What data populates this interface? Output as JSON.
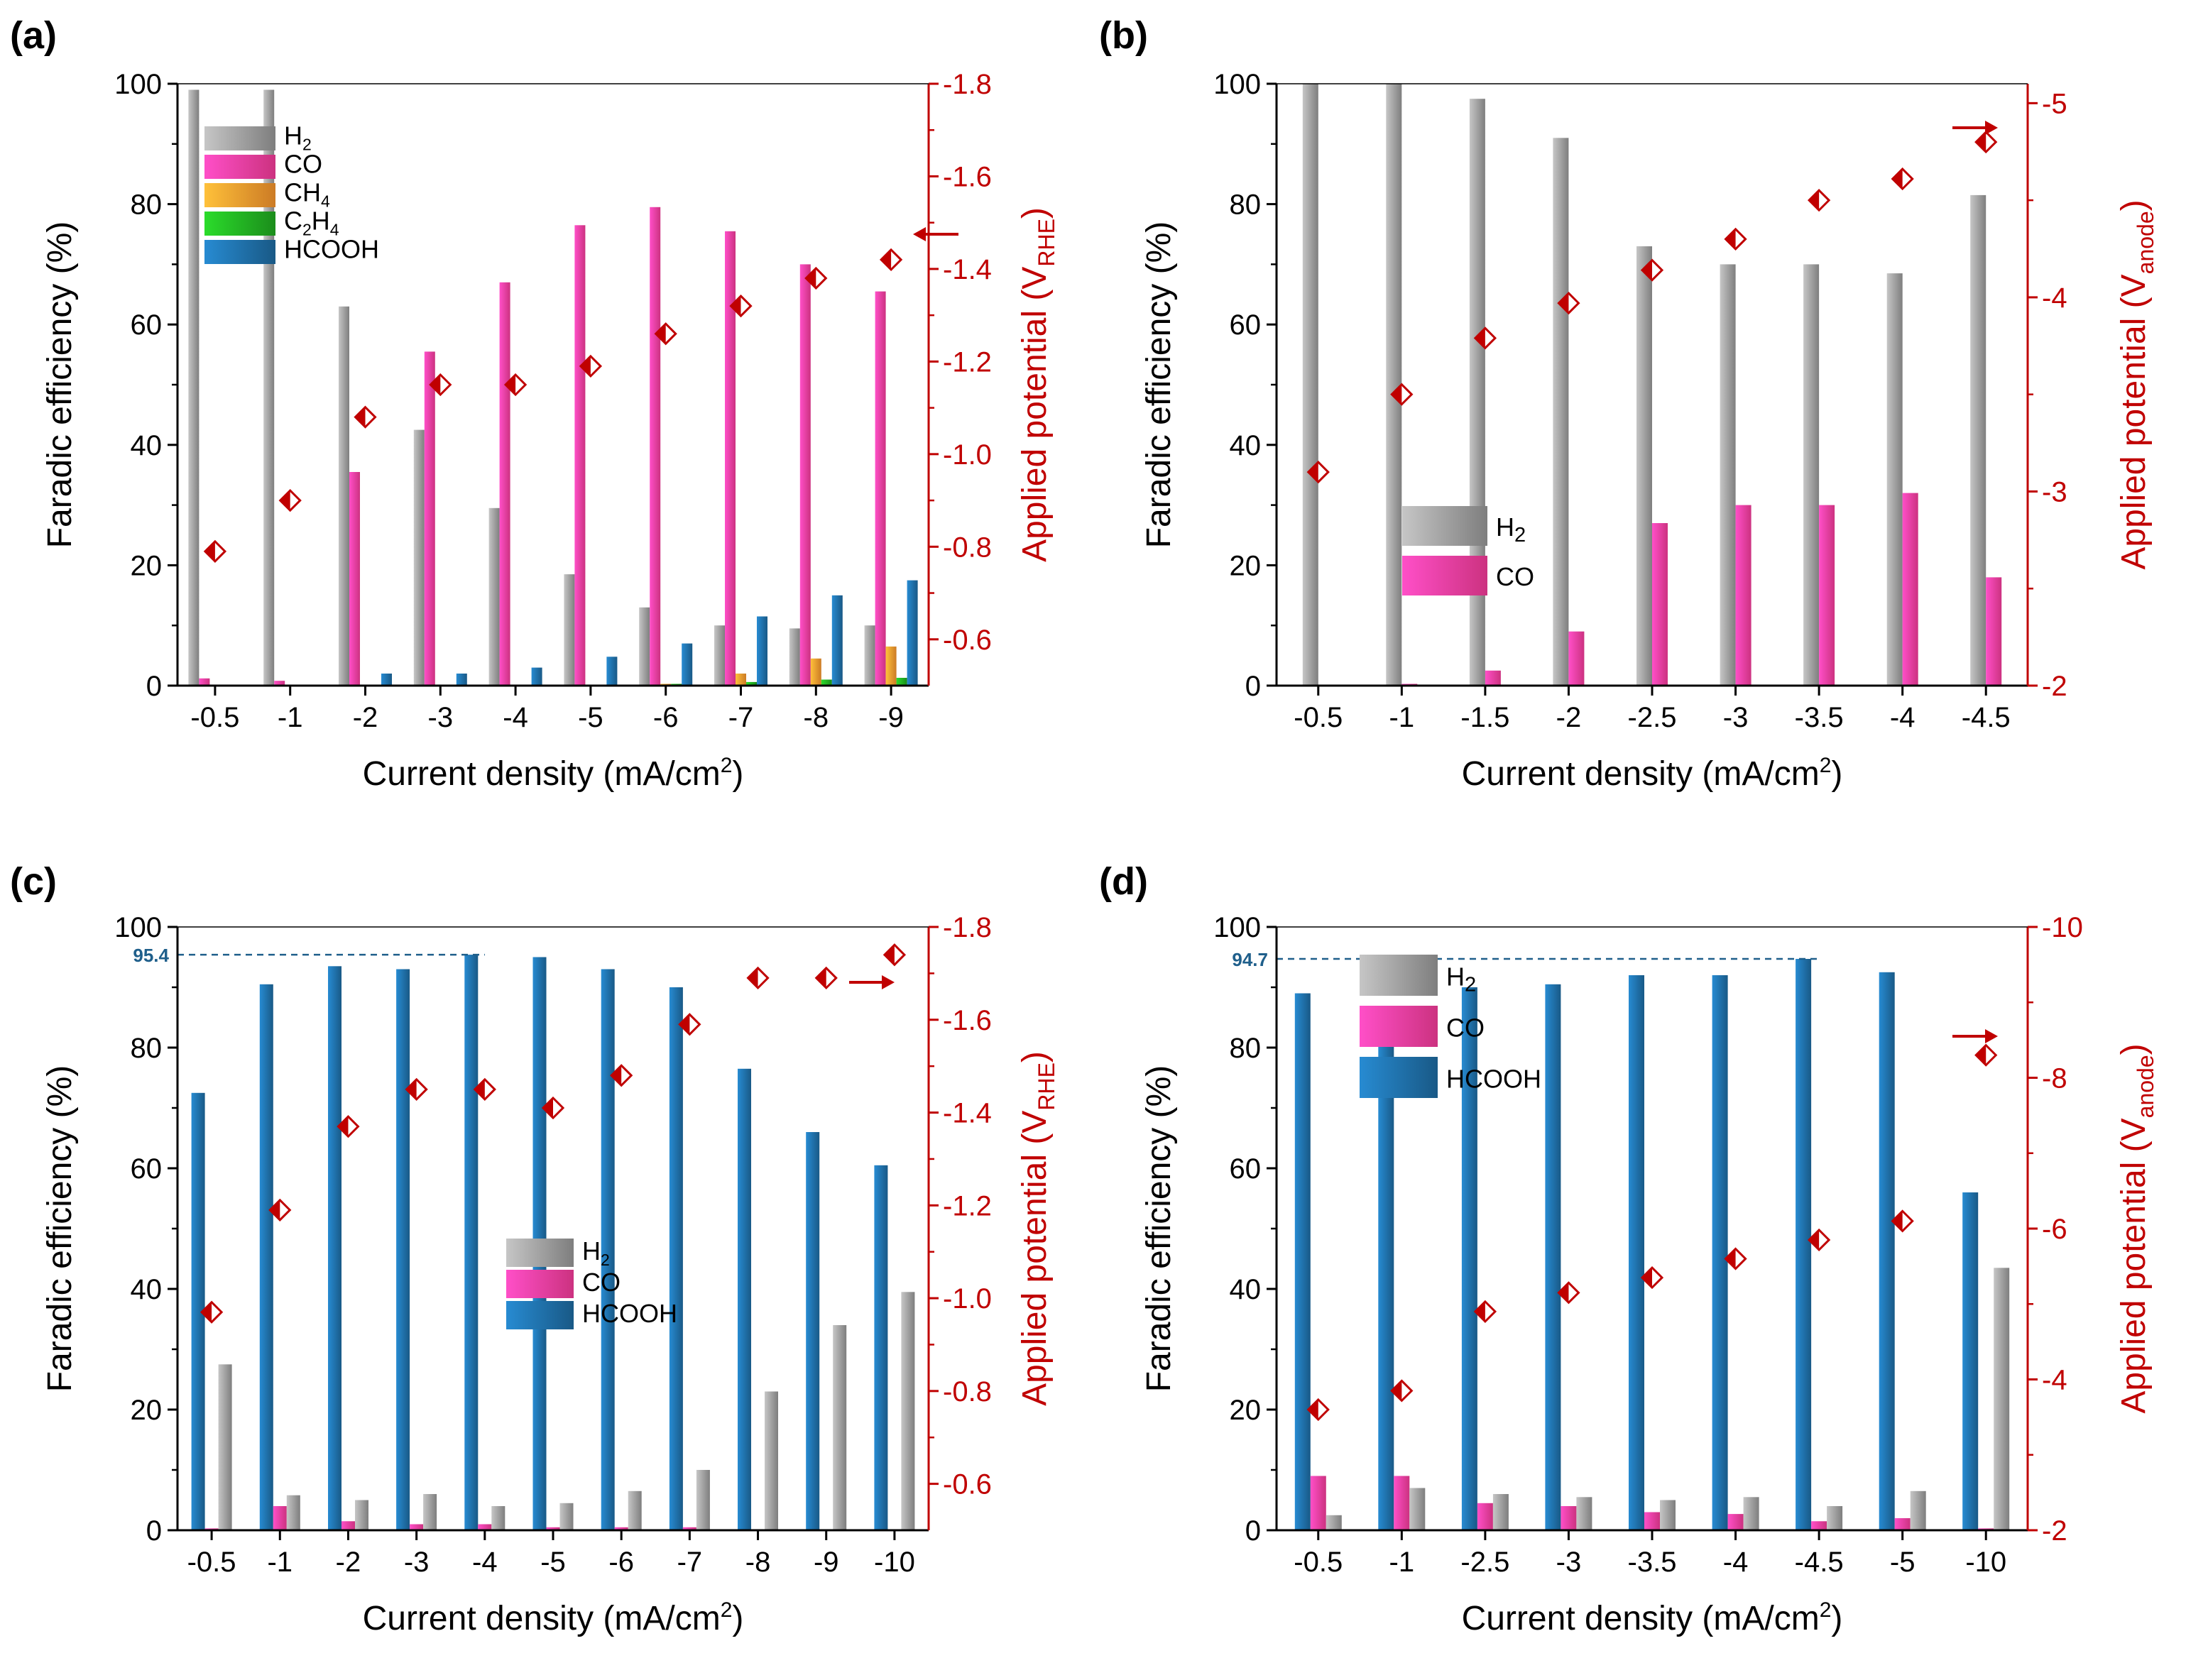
{
  "colors": {
    "H2": "#9e9e9e",
    "CO": "#ff3fa0",
    "CH4": "#ff9a2e",
    "C2H4": "#22b022",
    "HCOOH": "#1f6fa8",
    "potential": "#c00000",
    "axis": "#000000",
    "annotation": "#1f5f8b"
  },
  "chart_data": [
    {
      "id": "a",
      "type": "bar",
      "panel_label": "(a)",
      "xlabel": "Current density (mA/cm",
      "xlabel_sup": "2",
      "xlabel_end": ")",
      "ylabel": "Faradic efficiency (%)",
      "y2label": "Applied potential (V",
      "y2label_sub": "RHE",
      "y2label_end": ")",
      "categories": [
        "-0.5",
        "-1",
        "-2",
        "-3",
        "-4",
        "-5",
        "-6",
        "-7",
        "-8",
        "-9"
      ],
      "ylim": [
        0,
        100
      ],
      "yticks": [
        "0",
        "20",
        "40",
        "60",
        "80",
        "100"
      ],
      "y2lim": [
        -0.5,
        -1.8
      ],
      "y2ticks": [
        {
          "v": -0.6,
          "t": "-0.6"
        },
        {
          "v": -0.8,
          "t": "-0.8"
        },
        {
          "v": -1.0,
          "t": "-1.0"
        },
        {
          "v": -1.2,
          "t": "-1.2"
        },
        {
          "v": -1.4,
          "t": "-1.4"
        },
        {
          "v": -1.6,
          "t": "-1.6"
        },
        {
          "v": -1.8,
          "t": "-1.8"
        }
      ],
      "legend": [
        {
          "key": "H2",
          "label": "H",
          "sub": "2"
        },
        {
          "key": "CO",
          "label": "CO",
          "sub": ""
        },
        {
          "key": "CH4",
          "label": "CH",
          "sub": "4"
        },
        {
          "key": "C2H4",
          "label": "C",
          "sub": "2",
          "label2": "H",
          "sub2": "4"
        },
        {
          "key": "HCOOH",
          "label": "HCOOH",
          "sub": ""
        }
      ],
      "series": [
        {
          "name": "H2",
          "values": [
            99,
            99,
            63,
            42.5,
            29.5,
            18.5,
            13,
            10,
            9.5,
            10
          ]
        },
        {
          "name": "CO",
          "values": [
            1.2,
            0.8,
            35.5,
            55.5,
            67,
            76.5,
            79.5,
            75.5,
            70,
            65.5
          ]
        },
        {
          "name": "CH4",
          "values": [
            0,
            0,
            0,
            0,
            0,
            0,
            0.3,
            2,
            4.5,
            6.5
          ]
        },
        {
          "name": "C2H4",
          "values": [
            0,
            0,
            0,
            0,
            0,
            0,
            0.3,
            0.6,
            1,
            1.3
          ]
        },
        {
          "name": "HCOOH",
          "values": [
            0,
            0,
            2,
            2,
            3,
            4.8,
            7,
            11.5,
            15,
            17.5
          ]
        }
      ],
      "potential": [
        -0.79,
        -0.9,
        -1.08,
        -1.15,
        -1.15,
        -1.19,
        -1.26,
        -1.32,
        -1.38,
        -1.42
      ]
    },
    {
      "id": "b",
      "type": "bar",
      "panel_label": "(b)",
      "xlabel": "Current density (mA/cm",
      "xlabel_sup": "2",
      "xlabel_end": ")",
      "ylabel": "Faradic efficiency (%)",
      "y2label": "Applied potential (V",
      "y2label_sub": "anode",
      "y2label_end": ")",
      "categories": [
        "-0.5",
        "-1",
        "-1.5",
        "-2",
        "-2.5",
        "-3",
        "-3.5",
        "-4",
        "-4.5"
      ],
      "ylim": [
        0,
        100
      ],
      "yticks": [
        "0",
        "20",
        "40",
        "60",
        "80",
        "100"
      ],
      "y2lim": [
        -2,
        -5.1
      ],
      "y2ticks": [
        {
          "v": -2,
          "t": "-2"
        },
        {
          "v": -3,
          "t": "-3"
        },
        {
          "v": -4,
          "t": "-4"
        },
        {
          "v": -5,
          "t": "-5"
        }
      ],
      "legend": [
        {
          "key": "H2",
          "label": "H",
          "sub": "2"
        },
        {
          "key": "CO",
          "label": "CO",
          "sub": ""
        }
      ],
      "series": [
        {
          "name": "H2",
          "values": [
            100,
            100,
            97.5,
            91,
            73,
            70,
            70,
            68.5,
            81.5
          ]
        },
        {
          "name": "CO",
          "values": [
            0,
            0.3,
            2.5,
            9,
            27,
            30,
            30,
            32,
            18
          ]
        }
      ],
      "potential": [
        -3.1,
        -3.5,
        -3.79,
        -3.97,
        -4.14,
        -4.3,
        -4.5,
        -4.61,
        -4.8
      ]
    },
    {
      "id": "c",
      "type": "bar",
      "panel_label": "(c)",
      "xlabel": "Current density (mA/cm",
      "xlabel_sup": "2",
      "xlabel_end": ")",
      "ylabel": "Faradic efficiency (%)",
      "y2label": "Applied potential (V",
      "y2label_sub": "RHE",
      "y2label_end": ")",
      "categories": [
        "-0.5",
        "-1",
        "-2",
        "-3",
        "-4",
        "-5",
        "-6",
        "-7",
        "-8",
        "-9",
        "-10"
      ],
      "ylim": [
        0,
        100
      ],
      "yticks": [
        "0",
        "20",
        "40",
        "60",
        "80",
        "100"
      ],
      "y2lim": [
        -0.5,
        -1.8
      ],
      "y2ticks": [
        {
          "v": -0.6,
          "t": "-0.6"
        },
        {
          "v": -0.8,
          "t": "-0.8"
        },
        {
          "v": -1.0,
          "t": "-1.0"
        },
        {
          "v": -1.2,
          "t": "-1.2"
        },
        {
          "v": -1.4,
          "t": "-1.4"
        },
        {
          "v": -1.6,
          "t": "-1.6"
        },
        {
          "v": -1.8,
          "t": "-1.8"
        }
      ],
      "annotation": {
        "value": 95.4,
        "label": "95.4",
        "to_index": 4
      },
      "legend": [
        {
          "key": "H2",
          "label": "H",
          "sub": "2"
        },
        {
          "key": "CO",
          "label": "CO",
          "sub": ""
        },
        {
          "key": "HCOOH",
          "label": "HCOOH",
          "sub": ""
        }
      ],
      "series": [
        {
          "name": "HCOOH",
          "values": [
            72.5,
            90.5,
            93.5,
            93,
            95.4,
            95,
            93,
            90,
            76.5,
            66,
            60.5
          ]
        },
        {
          "name": "CO",
          "values": [
            0.3,
            4,
            1.5,
            1,
            1,
            0.5,
            0.5,
            0.5,
            0,
            0,
            0
          ]
        },
        {
          "name": "H2",
          "values": [
            27.5,
            5.8,
            5,
            6,
            4,
            4.5,
            6.5,
            10,
            23,
            34,
            39.5
          ]
        }
      ],
      "potential": [
        -0.97,
        -1.19,
        -1.37,
        -1.45,
        -1.45,
        -1.41,
        -1.48,
        -1.59,
        -1.69,
        -1.69,
        -1.74
      ]
    },
    {
      "id": "d",
      "type": "bar",
      "panel_label": "(d)",
      "xlabel": "Current density (mA/cm",
      "xlabel_sup": "2",
      "xlabel_end": ")",
      "ylabel": "Faradic efficiency (%)",
      "y2label": "Applied potential (V",
      "y2label_sub": "anode",
      "y2label_end": ")",
      "categories": [
        "-0.5",
        "-1",
        "-2.5",
        "-3",
        "-3.5",
        "-4",
        "-4.5",
        "-5",
        "-10"
      ],
      "ylim": [
        0,
        100
      ],
      "yticks": [
        "0",
        "20",
        "40",
        "60",
        "80",
        "100"
      ],
      "y2lim": [
        -2,
        -10
      ],
      "y2ticks": [
        {
          "v": -2,
          "t": "-2"
        },
        {
          "v": -4,
          "t": "-4"
        },
        {
          "v": -6,
          "t": "-6"
        },
        {
          "v": -8,
          "t": "-8"
        },
        {
          "v": -10,
          "t": "-10"
        }
      ],
      "annotation": {
        "value": 94.7,
        "label": "94.7",
        "to_index": 6
      },
      "legend": [
        {
          "key": "H2",
          "label": "H",
          "sub": "2"
        },
        {
          "key": "CO",
          "label": "CO",
          "sub": ""
        },
        {
          "key": "HCOOH",
          "label": "HCOOH",
          "sub": ""
        }
      ],
      "series": [
        {
          "name": "HCOOH",
          "values": [
            89,
            84.5,
            90,
            90.5,
            92,
            92,
            94.7,
            92.5,
            56
          ]
        },
        {
          "name": "CO",
          "values": [
            9,
            9,
            4.5,
            4,
            3,
            2.7,
            1.5,
            2,
            0.3
          ]
        },
        {
          "name": "H2",
          "values": [
            2.5,
            7,
            6,
            5.5,
            5,
            5.5,
            4,
            6.5,
            43.5
          ]
        }
      ],
      "potential": [
        -3.6,
        -3.85,
        -4.9,
        -5.15,
        -5.35,
        -5.6,
        -5.85,
        -6.1,
        -8.3
      ]
    }
  ]
}
